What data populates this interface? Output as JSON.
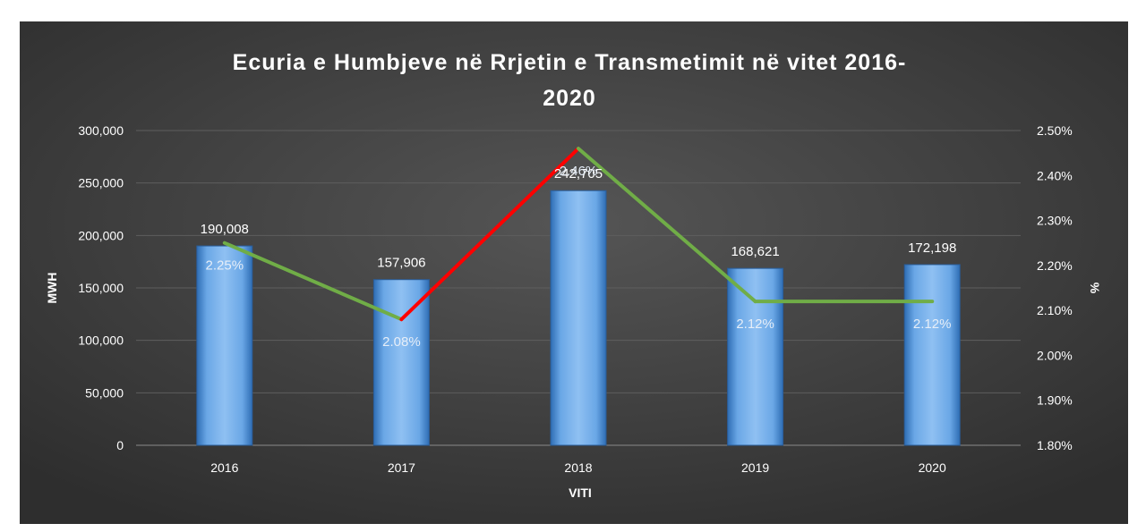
{
  "chart_data": {
    "type": "bar",
    "title_line1": "Ecuria e Humbjeve në Rrjetin e Transmetimit në vitet 2016-",
    "title_line2": "2020",
    "xlabel": "VITI",
    "ylabel": "MWH",
    "y2label": "%",
    "categories": [
      "2016",
      "2017",
      "2018",
      "2019",
      "2020"
    ],
    "series": [
      {
        "axis": "left",
        "values": [
          190008,
          157906,
          242705,
          168621,
          172198
        ],
        "value_labels": [
          "190,008",
          "157,906",
          "242,705",
          "168,621",
          "172,198"
        ]
      },
      {
        "axis": "right",
        "values": [
          2.25,
          2.08,
          2.46,
          2.12,
          2.12
        ],
        "value_labels": [
          "2.25%",
          "2.08%",
          "2.46%",
          "2.12%",
          "2.12%"
        ]
      }
    ],
    "ylim": [
      0,
      300000
    ],
    "y_ticks": [
      "0",
      "50,000",
      "100,000",
      "150,000",
      "200,000",
      "250,000",
      "300,000"
    ],
    "y2lim": [
      1.8,
      2.5
    ],
    "y2_ticks": [
      "1.80%",
      "1.90%",
      "2.00%",
      "2.10%",
      "2.20%",
      "2.30%",
      "2.40%",
      "2.50%"
    ],
    "grid": true,
    "colors": {
      "background": "#3c3c3c",
      "bar": "#5b9bd5",
      "line": "#70ad47",
      "line_increase": "#ff0000",
      "text": "#ffffff",
      "grid": "#5e5e5e"
    }
  }
}
